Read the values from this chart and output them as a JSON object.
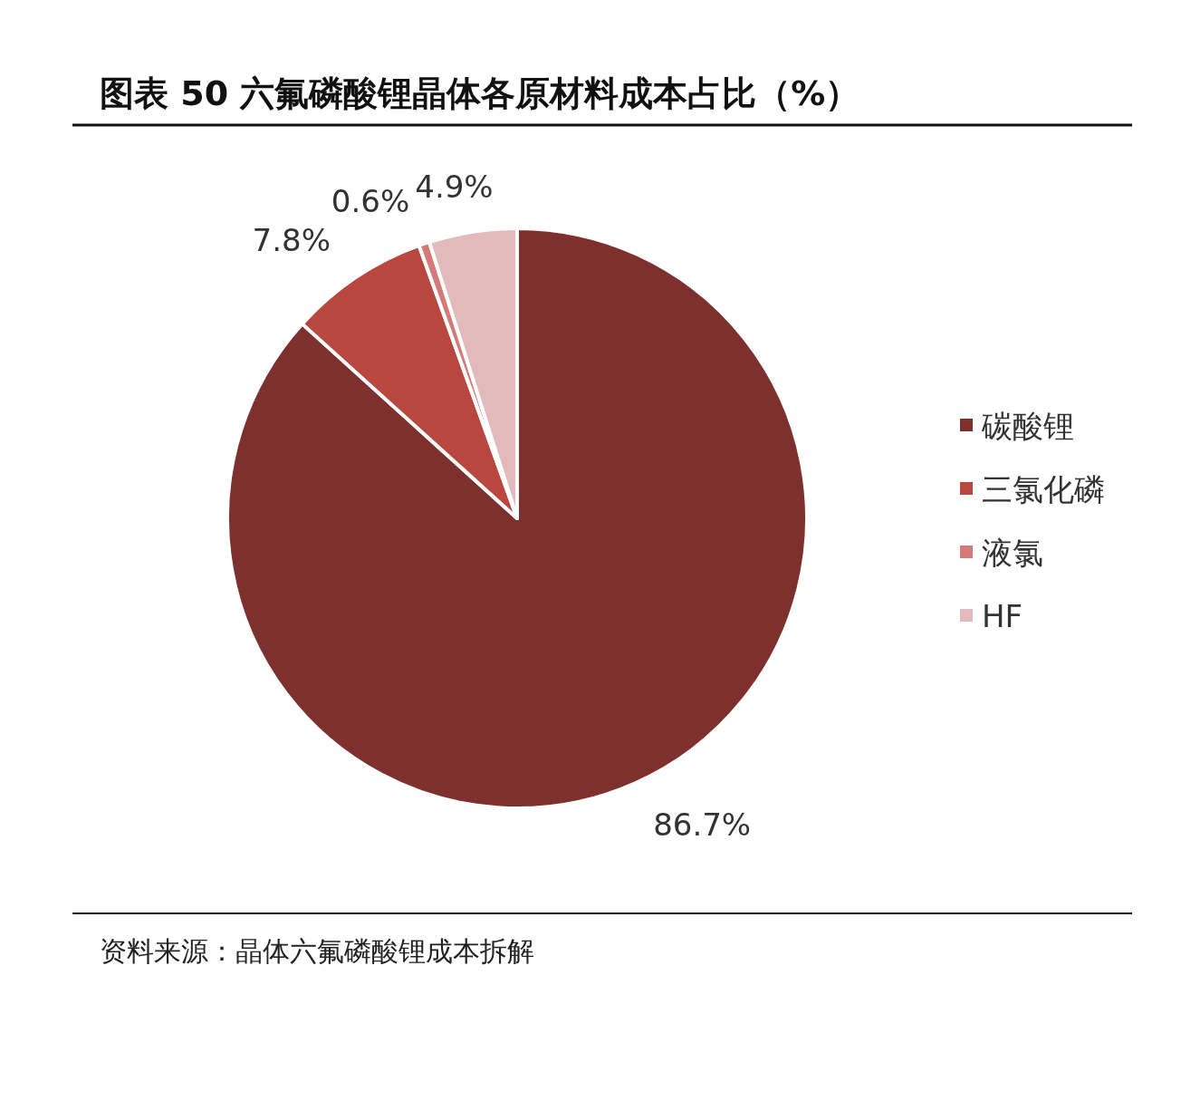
{
  "chart_data": {
    "type": "pie",
    "title": "图表 50  六氟磷酸锂晶体各原材料成本占比（%）",
    "categories": [
      "碳酸锂",
      "三氯化磷",
      "液氯",
      "HF"
    ],
    "values": [
      86.7,
      7.8,
      0.6,
      4.9
    ],
    "colors": [
      "#7d302d",
      "#b8483f",
      "#d47a78",
      "#e2babb"
    ],
    "value_labels": [
      "86.7%",
      "7.8%",
      "0.6%",
      "4.9%"
    ],
    "legend": "right",
    "annotations": [
      "资料来源：晶体六氟磷酸锂成本拆解"
    ]
  }
}
